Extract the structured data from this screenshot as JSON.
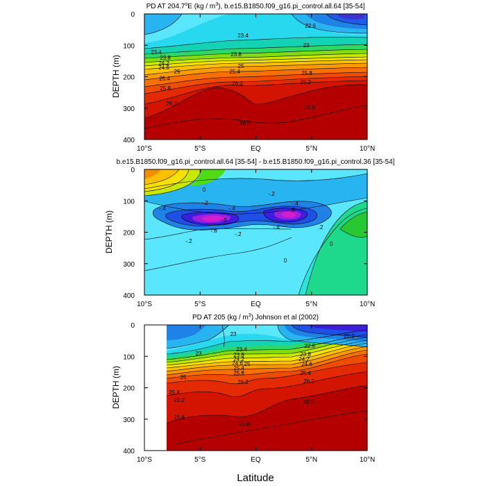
{
  "figure": {
    "xlabel": "Latitude"
  },
  "chart_data": [
    {
      "type": "heatmap",
      "title": "PD AT 204.7°E (kg / m³), b.e15.B1850.f09_g16.pi_control.all.64 [35-54]",
      "title_parts": [
        "PD AT 204.7",
        "o",
        "E (kg / m",
        "3",
        "), b.e15.B1850.f09_g16.pi_control.all.64 [35-54]"
      ],
      "ylabel": "DEPTH (m)",
      "xlim": [
        -10,
        10
      ],
      "ylim": [
        400,
        0
      ],
      "xticks": [
        -10,
        -5,
        0,
        5,
        10
      ],
      "xtick_labels": [
        "10°S",
        "5°S",
        "EQ",
        "5°N",
        "10°N"
      ],
      "yticks": [
        0,
        100,
        200,
        300,
        400
      ],
      "contour_labels": [
        "22.6",
        "23",
        "23.4",
        "23.8",
        "24.2",
        "24.6",
        "25",
        "25.4",
        "25.8",
        "26.2",
        "26.6"
      ],
      "data_masked_south_of": null
    },
    {
      "type": "heatmap",
      "title": "b.e15.B1850.f09_g16.pi_control.all.64 [35-54] - b.e15.B1850.f09_g16.pi_control.36 [35-54]",
      "ylabel": "DEPTH (m)",
      "xlim": [
        -10,
        10
      ],
      "ylim": [
        400,
        0
      ],
      "xticks": [
        -10,
        -5,
        0,
        5,
        10
      ],
      "xtick_labels": [
        "10°S",
        "5°S",
        "EQ",
        "5°N",
        "10°N"
      ],
      "yticks": [
        0,
        100,
        200,
        300,
        400
      ],
      "contour_labels": [
        "0",
        "-.2",
        "-.4",
        "-.6",
        "-.8",
        ".2"
      ],
      "data_masked_south_of": null
    },
    {
      "type": "heatmap",
      "title": "PD AT 205 (kg / m³) Johnson et al (2002)",
      "title_parts": [
        "PD AT 205 (kg / m",
        "3",
        ") Johnson et al (2002)"
      ],
      "ylabel": "DEPTH (m)",
      "xlim": [
        -10,
        10
      ],
      "ylim": [
        400,
        0
      ],
      "xticks": [
        -10,
        -5,
        0,
        5,
        10
      ],
      "xtick_labels": [
        "10°S",
        "5°S",
        "EQ",
        "5°N",
        "10°N"
      ],
      "yticks": [
        0,
        100,
        200,
        300,
        400
      ],
      "contour_labels": [
        "22.2",
        "22.6",
        "23",
        "23.4",
        "23.8",
        "24.2",
        "24.6",
        "25",
        "25.4",
        "25.8",
        "26.2",
        "26.6"
      ],
      "data_masked_south_of": -8
    }
  ]
}
